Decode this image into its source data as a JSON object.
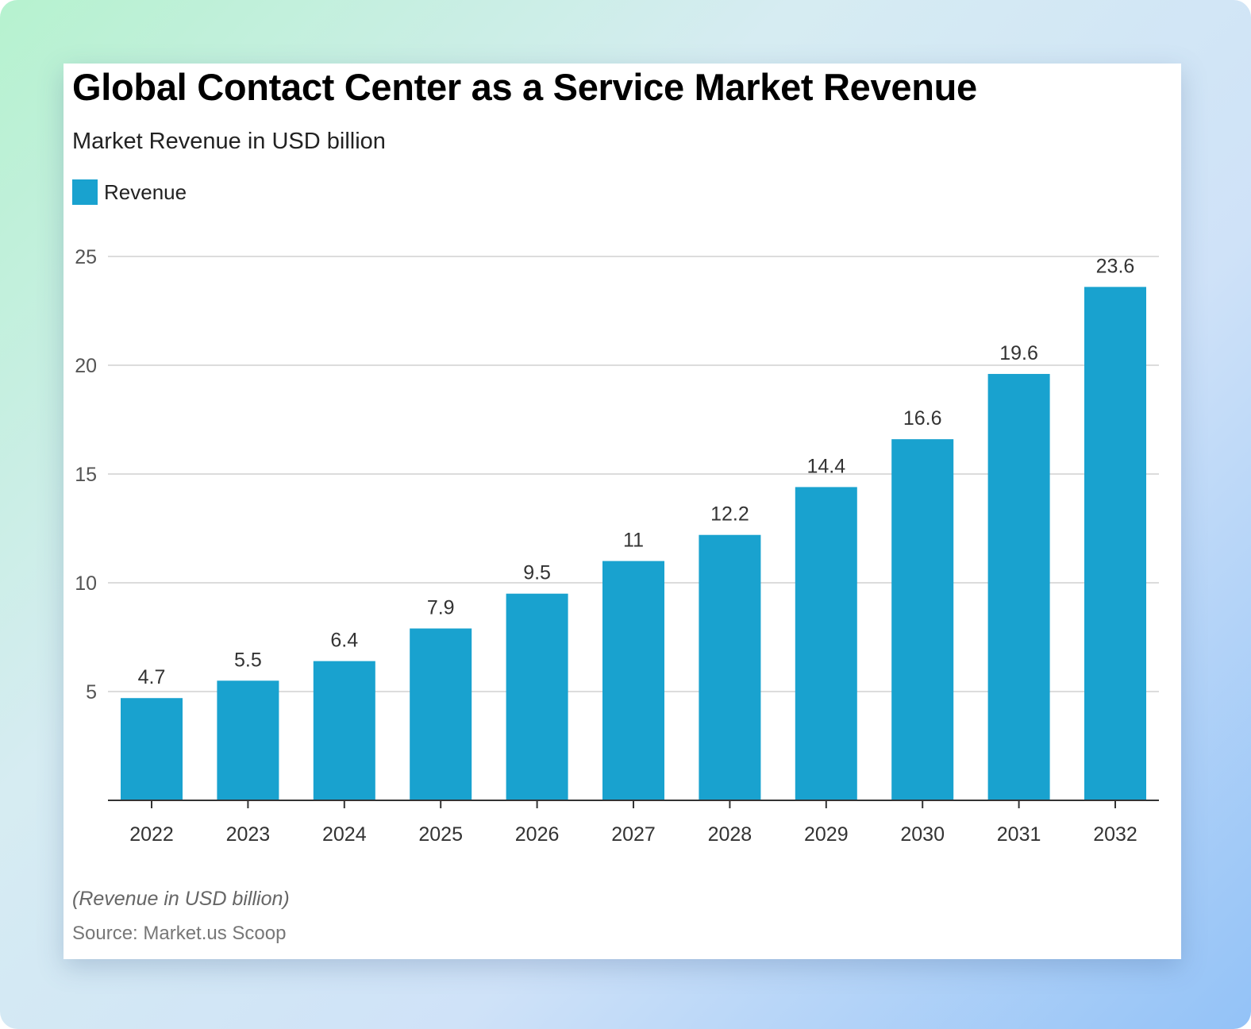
{
  "chart_data": {
    "type": "bar",
    "title": "Global Contact Center as a Service Market Revenue",
    "subtitle": "Market Revenue in USD billion",
    "categories": [
      "2022",
      "2023",
      "2024",
      "2025",
      "2026",
      "2027",
      "2028",
      "2029",
      "2030",
      "2031",
      "2032"
    ],
    "series": [
      {
        "name": "Revenue",
        "values": [
          4.7,
          5.5,
          6.4,
          7.9,
          9.5,
          11,
          12.2,
          14.4,
          16.6,
          19.6,
          23.6
        ],
        "color": "#19a2cf"
      }
    ],
    "yticks": [
      5,
      10,
      15,
      20,
      25
    ],
    "ylim": [
      0,
      25
    ],
    "grid": true,
    "legend_position": "top-left",
    "xlabel": "",
    "ylabel": "",
    "note": "(Revenue in USD billion)",
    "source": "Source: Market.us Scoop"
  }
}
